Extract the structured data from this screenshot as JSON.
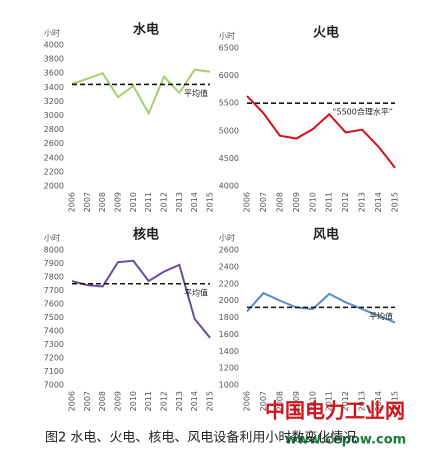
{
  "chart_data": [
    {
      "type": "line",
      "title": "水电",
      "y_label": "小时",
      "categories": [
        "2006",
        "2007",
        "2008",
        "2009",
        "2010",
        "2011",
        "2012",
        "2013",
        "2014",
        "2015"
      ],
      "values": [
        3450,
        3520,
        3600,
        3260,
        3420,
        3030,
        3550,
        3320,
        3650,
        3620
      ],
      "color": "#a6cf6a",
      "ylim": [
        2000,
        4000
      ],
      "yticks": [
        2000,
        2200,
        2400,
        2600,
        2800,
        3000,
        3200,
        3400,
        3600,
        3800,
        4000
      ],
      "reference": {
        "value": 3440,
        "label": "平均值"
      }
    },
    {
      "type": "line",
      "title": "火电",
      "y_label": "小时",
      "categories": [
        "2006",
        "2007",
        "2008",
        "2009",
        "2010",
        "2011",
        "2012",
        "2013",
        "2014",
        "2015"
      ],
      "values": [
        5630,
        5320,
        4910,
        4860,
        5030,
        5300,
        4970,
        5020,
        4710,
        4330
      ],
      "color": "#d0121b",
      "ylim": [
        4000,
        6500
      ],
      "yticks": [
        4000,
        4500,
        5000,
        5500,
        6000,
        6500
      ],
      "reference": {
        "value": 5500,
        "label": "“5500合理水平”"
      }
    },
    {
      "type": "line",
      "title": "核电",
      "y_label": "小时",
      "categories": [
        "2006",
        "2007",
        "2008",
        "2009",
        "2010",
        "2011",
        "2012",
        "2013",
        "2014",
        "2015"
      ],
      "values": [
        7770,
        7740,
        7730,
        7910,
        7920,
        7770,
        7840,
        7890,
        7490,
        7350
      ],
      "color": "#6a4c9c",
      "ylim": [
        7000,
        8000
      ],
      "yticks": [
        7000,
        7100,
        7200,
        7300,
        7400,
        7500,
        7600,
        7700,
        7800,
        7900,
        8000
      ],
      "reference": {
        "value": 7750,
        "label": "平均值"
      }
    },
    {
      "type": "line",
      "title": "风电",
      "y_label": "小时",
      "categories": [
        "2006",
        "2007",
        "2008",
        "2009",
        "2010",
        "2011",
        "2012",
        "2013",
        "2014",
        "2015"
      ],
      "values": [
        1870,
        2090,
        2000,
        1920,
        1900,
        2080,
        1980,
        1900,
        1820,
        1740
      ],
      "color": "#5b8cc8",
      "ylim": [
        1000,
        2600
      ],
      "yticks": [
        1000,
        1200,
        1400,
        1600,
        1800,
        2000,
        2200,
        2400,
        2600
      ],
      "reference": {
        "value": 1920,
        "label": "平均值"
      }
    }
  ],
  "caption": "图2  水电、火电、核电、风电设备利用小时数变化情况",
  "watermark": {
    "name": "中国电力工业网",
    "url": "www.cepow.com"
  }
}
